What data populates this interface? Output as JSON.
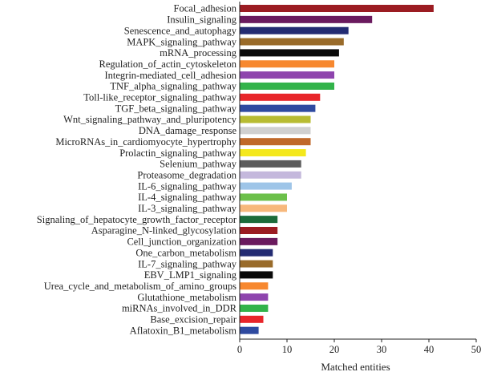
{
  "chart_data": {
    "type": "bar",
    "orientation": "horizontal",
    "xlabel": "Matched entities",
    "xlim": [
      0,
      50
    ],
    "xticks": [
      0,
      10,
      20,
      30,
      40,
      50
    ],
    "grid": false,
    "categories": [
      "Focal_adhesion",
      "Insulin_signaling",
      "Senescence_and_autophagy",
      "MAPK_signaling_pathway",
      "mRNA_processing",
      "Regulation_of_actin_cytoskeleton",
      "Integrin-mediated_cell_adhesion",
      "TNF_alpha_signaling_pathway",
      "Toll-like_receptor_signaling_pathway",
      "TGF_beta_signaling_pathway",
      "Wnt_signaling_pathway_and_pluripotency",
      "DNA_damage_response",
      "MicroRNAs_in_cardiomyocyte_hypertrophy",
      "Prolactin_signaling_pathway",
      "Selenium_pathway",
      "Proteasome_degradation",
      "IL-6_signaling_pathway",
      "IL-4_signaling_pathway",
      "IL-3_signaling_pathway",
      "Signaling_of_hepatocyte_growth_factor_receptor",
      "Asparagine_N-linked_glycosylation",
      "Cell_junction_organization",
      "One_carbon_metabolism",
      "IL-7_signaling_pathway",
      "EBV_LMP1_signaling",
      "Urea_cycle_and_metabolism_of_amino_groups",
      "Glutathione_metabolism",
      "miRNAs_involved_in_DDR",
      "Base_excision_repair",
      "Aflatoxin_B1_metabolism"
    ],
    "values": [
      41,
      28,
      23,
      22,
      21,
      20,
      20,
      20,
      17,
      16,
      15,
      15,
      15,
      14,
      13,
      13,
      11,
      10,
      10,
      8,
      8,
      8,
      7,
      7,
      7,
      6,
      6,
      6,
      5,
      4
    ],
    "colors": [
      "#9b1c22",
      "#6a1a5e",
      "#232b72",
      "#996b2a",
      "#0a0a0a",
      "#f7882f",
      "#8e44ad",
      "#32b34a",
      "#e8252a",
      "#2e4aa0",
      "#b8bc32",
      "#d0d0d0",
      "#c0692a",
      "#f4e81c",
      "#5c5c5c",
      "#c4b8dc",
      "#9ec5e8",
      "#6cc04a",
      "#f7b87c",
      "#1b6b3a",
      "#9b1c22",
      "#6a1a5e",
      "#232b72",
      "#996b2a",
      "#0a0a0a",
      "#f7882f",
      "#8e44ad",
      "#32b34a",
      "#e8252a",
      "#2e4aa0"
    ]
  }
}
